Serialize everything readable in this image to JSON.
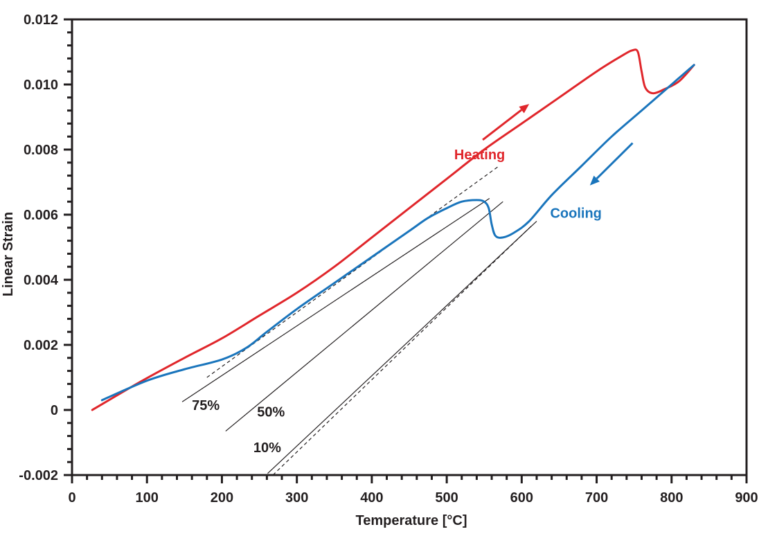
{
  "chart_data": {
    "type": "line",
    "title": "",
    "xlabel": "Temperature [°C]",
    "ylabel": "Linear Strain",
    "xlim": [
      0,
      900
    ],
    "ylim": [
      -0.002,
      0.012
    ],
    "grid": false,
    "x_ticks": [
      0,
      100,
      200,
      300,
      400,
      500,
      600,
      700,
      800,
      900
    ],
    "x_tick_labels": [
      "0",
      "100",
      "200",
      "300",
      "400",
      "500",
      "600",
      "700",
      "800",
      "900"
    ],
    "x_minor_step": 20,
    "y_ticks": [
      -0.002,
      0,
      0.002,
      0.004,
      0.006,
      0.008,
      0.01,
      0.012
    ],
    "y_tick_labels": [
      "-0.002",
      "0",
      "0.002",
      "0.004",
      "0.006",
      "0.008",
      "0.010",
      "0.012"
    ],
    "y_minor_step": 0.0004,
    "series": [
      {
        "name": "Heating",
        "color": "#e0262b",
        "points": [
          [
            27,
            0.0
          ],
          [
            90,
            0.00085
          ],
          [
            150,
            0.0016
          ],
          [
            200,
            0.0022
          ],
          [
            250,
            0.0029
          ],
          [
            300,
            0.0036
          ],
          [
            350,
            0.0044
          ],
          [
            400,
            0.0053
          ],
          [
            450,
            0.0062
          ],
          [
            500,
            0.0071
          ],
          [
            550,
            0.008
          ],
          [
            600,
            0.0088
          ],
          [
            650,
            0.0096
          ],
          [
            700,
            0.0104
          ],
          [
            735,
            0.0109
          ],
          [
            748,
            0.01105
          ],
          [
            755,
            0.011
          ],
          [
            760,
            0.0104
          ],
          [
            765,
            0.0099
          ],
          [
            775,
            0.00973
          ],
          [
            790,
            0.00985
          ],
          [
            810,
            0.0101
          ],
          [
            830,
            0.0106
          ]
        ]
      },
      {
        "name": "Cooling",
        "color": "#1a75bc",
        "points": [
          [
            830,
            0.0106
          ],
          [
            800,
            0.01
          ],
          [
            760,
            0.0092
          ],
          [
            720,
            0.0084
          ],
          [
            680,
            0.0075
          ],
          [
            640,
            0.0066
          ],
          [
            610,
            0.0058
          ],
          [
            590,
            0.00545
          ],
          [
            575,
            0.0053
          ],
          [
            565,
            0.00535
          ],
          [
            560,
            0.0057
          ],
          [
            556,
            0.0062
          ],
          [
            550,
            0.0064
          ],
          [
            540,
            0.00645
          ],
          [
            520,
            0.0064
          ],
          [
            500,
            0.0062
          ],
          [
            475,
            0.0059
          ],
          [
            450,
            0.0055
          ],
          [
            400,
            0.0047
          ],
          [
            350,
            0.0039
          ],
          [
            300,
            0.0031
          ],
          [
            260,
            0.0024
          ],
          [
            232,
            0.0019
          ],
          [
            200,
            0.00155
          ],
          [
            150,
            0.00125
          ],
          [
            100,
            0.0009
          ],
          [
            40,
            0.0003
          ]
        ]
      }
    ],
    "reference_lines": [
      {
        "name": "dashed-upper",
        "style": "dashed",
        "from": [
          180,
          0.001
        ],
        "to": [
          570,
          0.0075
        ]
      },
      {
        "name": "75%",
        "style": "solid",
        "from": [
          147,
          0.00025
        ],
        "to": [
          557,
          0.0065
        ]
      },
      {
        "name": "50%",
        "style": "solid",
        "from": [
          205,
          -0.00065
        ],
        "to": [
          575,
          0.0064
        ]
      },
      {
        "name": "10%",
        "style": "solid",
        "from": [
          261,
          -0.00195
        ],
        "to": [
          620,
          0.0058
        ]
      },
      {
        "name": "dashed-lower",
        "style": "dashed",
        "from": [
          268,
          -0.002
        ],
        "to": [
          615,
          0.0057
        ]
      }
    ],
    "annotations": [
      {
        "text": "Heating",
        "x": 510,
        "y": 0.0077,
        "color": "#e0262b"
      },
      {
        "text": "Cooling",
        "x": 638,
        "y": 0.0059,
        "color": "#1a75bc"
      },
      {
        "text": "75%",
        "x": 160,
        "y": 0.0
      },
      {
        "text": "50%",
        "x": 247,
        "y": -0.0002
      },
      {
        "text": "10%",
        "x": 242,
        "y": -0.0013
      }
    ],
    "arrows": [
      {
        "name": "heating-direction",
        "color": "#e0262b",
        "from": [
          548,
          0.0083
        ],
        "to": [
          610,
          0.0094
        ]
      },
      {
        "name": "cooling-direction",
        "color": "#1a75bc",
        "from": [
          748,
          0.0082
        ],
        "to": [
          691,
          0.0069
        ]
      }
    ]
  }
}
